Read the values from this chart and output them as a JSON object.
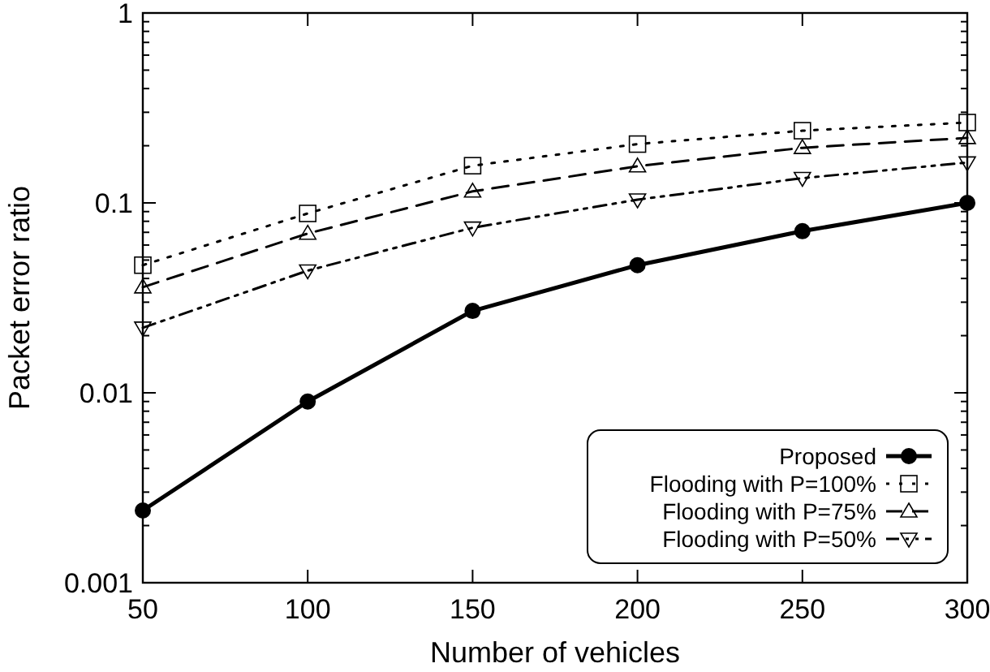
{
  "chart_data": {
    "type": "line",
    "xlabel": "Number of vehicles",
    "ylabel": "Packet error ratio",
    "x": [
      50,
      100,
      150,
      200,
      250,
      300
    ],
    "xlim": [
      50,
      300
    ],
    "xticks": [
      50,
      100,
      150,
      200,
      250,
      300
    ],
    "ylim": [
      0.001,
      1
    ],
    "yticks": [
      0.001,
      0.01,
      0.1,
      1
    ],
    "log": "y",
    "grid": false,
    "legend": "bottom right",
    "series": [
      {
        "name": "Proposed",
        "color": "#000000",
        "marker": "circle",
        "line_style": "solid",
        "values": [
          0.0024,
          0.009,
          0.027,
          0.047,
          0.071,
          0.1
        ]
      },
      {
        "name": "Flooding with P=100%",
        "color": "#000000",
        "marker": "square",
        "line_style": "dotted",
        "values": [
          0.047,
          0.088,
          0.157,
          0.204,
          0.24,
          0.265
        ]
      },
      {
        "name": "Flooding with P=75%",
        "color": "#000000",
        "marker": "triangle",
        "line_style": "dashed",
        "values": [
          0.036,
          0.069,
          0.115,
          0.156,
          0.195,
          0.22
        ]
      },
      {
        "name": "Flooding with P=50%",
        "color": "#000000",
        "marker": "triangle-down",
        "line_style": "dashdot",
        "values": [
          0.022,
          0.044,
          0.074,
          0.104,
          0.135,
          0.163
        ]
      }
    ]
  }
}
